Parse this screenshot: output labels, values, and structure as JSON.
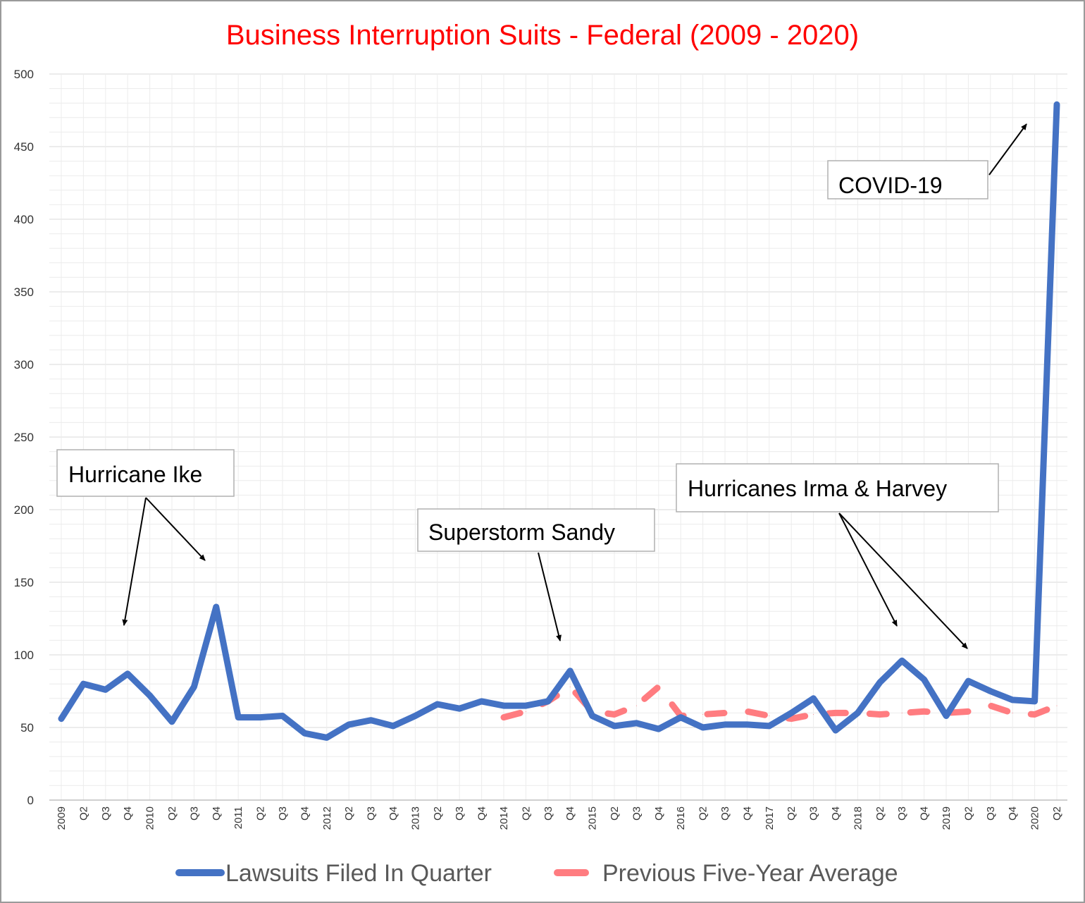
{
  "chart_data": {
    "type": "line",
    "title": "Business Interruption Suits - Federal (2009 - 2020)",
    "xlabel": "",
    "ylabel": "",
    "ylim": [
      0,
      500
    ],
    "yticks": [
      0,
      50,
      100,
      150,
      200,
      250,
      300,
      350,
      400,
      450,
      500
    ],
    "grid": true,
    "legend_position": "bottom",
    "categories": [
      "2009",
      "Q2",
      "Q3",
      "Q4",
      "2010",
      "Q2",
      "Q3",
      "Q4",
      "2011",
      "Q2",
      "Q3",
      "Q4",
      "2012",
      "Q2",
      "Q3",
      "Q4",
      "2013",
      "Q2",
      "Q3",
      "Q4",
      "2014",
      "Q2",
      "Q3",
      "Q4",
      "2015",
      "Q2",
      "Q3",
      "Q4",
      "2016",
      "Q2",
      "Q3",
      "Q4",
      "2017",
      "Q2",
      "Q3",
      "Q4",
      "2018",
      "Q2",
      "Q3",
      "Q4",
      "2019",
      "Q2",
      "Q3",
      "Q4",
      "2020",
      "Q2"
    ],
    "series": [
      {
        "name": "Lawsuits Filed In Quarter",
        "color": "#4472c4",
        "style": "solid",
        "values": [
          56,
          80,
          76,
          87,
          72,
          54,
          78,
          133,
          57,
          57,
          58,
          46,
          43,
          52,
          55,
          51,
          58,
          66,
          63,
          68,
          65,
          65,
          68,
          89,
          58,
          51,
          53,
          49,
          57,
          50,
          52,
          52,
          51,
          60,
          70,
          48,
          60,
          81,
          96,
          83,
          58,
          82,
          75,
          69,
          68,
          479
        ]
      },
      {
        "name": "Previous Five-Year Average",
        "color": "#ff7c80",
        "style": "dashed",
        "values": [
          null,
          null,
          null,
          null,
          null,
          null,
          null,
          null,
          null,
          null,
          null,
          null,
          null,
          null,
          null,
          null,
          null,
          null,
          null,
          null,
          57,
          61,
          68,
          78,
          61,
          59,
          65,
          78,
          58,
          59,
          60,
          61,
          58,
          56,
          59,
          60,
          60,
          59,
          60,
          61,
          60,
          61,
          65,
          60,
          59,
          65
        ]
      }
    ],
    "annotations": [
      {
        "text": "Hurricane Ike"
      },
      {
        "text": "Superstorm  Sandy"
      },
      {
        "text": "Hurricanes Irma & Harvey"
      },
      {
        "text": "COVID-19"
      }
    ]
  }
}
